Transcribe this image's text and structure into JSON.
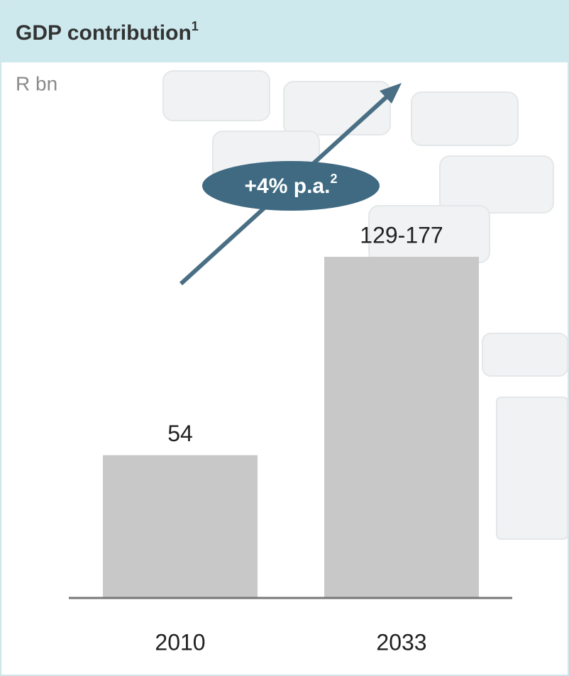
{
  "chart_data": {
    "type": "bar",
    "title": "GDP contribution",
    "title_sup": "1",
    "subtitle": "R bn",
    "categories": [
      "2010",
      "2033"
    ],
    "values": [
      54,
      129
    ],
    "value_labels": [
      "54",
      "129-177"
    ],
    "color": "#c8c8c8",
    "annotation": {
      "text": "+4% p.a.",
      "sup": "2"
    }
  }
}
